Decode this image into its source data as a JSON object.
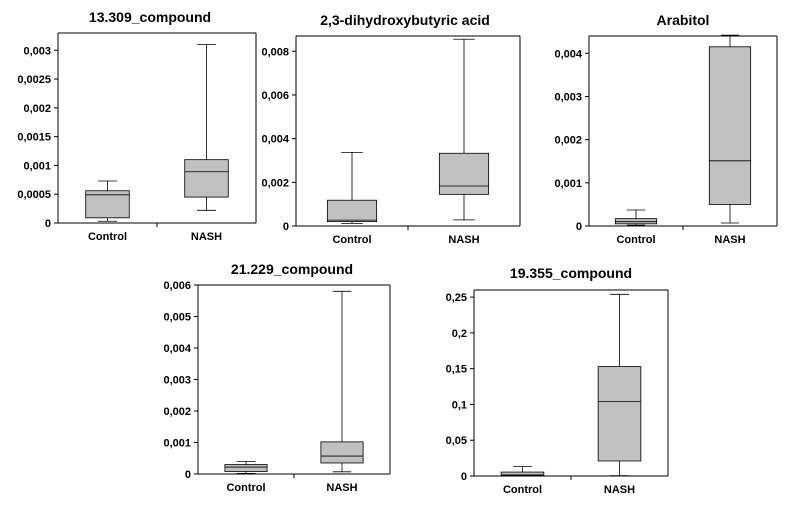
{
  "chart_data": [
    {
      "type": "box",
      "title": "13.309_compound",
      "categories": [
        "Control",
        "NASH"
      ],
      "yticks": [
        "0",
        "0,0005",
        "0,001",
        "0,0015",
        "0,002",
        "0,0025",
        "0,003"
      ],
      "ylim": [
        0,
        0.0033
      ],
      "boxes": [
        {
          "min": 3e-05,
          "q1": 9e-05,
          "median": 0.00049,
          "q3": 0.00056,
          "max": 0.00073
        },
        {
          "min": 0.00022,
          "q1": 0.00045,
          "median": 0.00089,
          "q3": 0.0011,
          "max": 0.0031
        }
      ],
      "box_color": "#c0c0c0"
    },
    {
      "type": "box",
      "title": "2,3-dihydroxybutyric  acid",
      "categories": [
        "Control",
        "NASH"
      ],
      "yticks": [
        "0",
        "0,002",
        "0,004",
        "0,006",
        "0,008"
      ],
      "ylim": [
        0,
        0.0087
      ],
      "boxes": [
        {
          "min": 0.00012,
          "q1": 0.0002,
          "median": 0.00027,
          "q3": 0.00118,
          "max": 0.00337
        },
        {
          "min": 0.00028,
          "q1": 0.00145,
          "median": 0.00183,
          "q3": 0.00333,
          "max": 0.00855
        }
      ],
      "box_color": "#c0c0c0"
    },
    {
      "type": "box",
      "title": "Arabitol",
      "categories": [
        "Control",
        "NASH"
      ],
      "yticks": [
        "0",
        "0,001",
        "0,002",
        "0,003",
        "0,004"
      ],
      "ylim": [
        0,
        0.0044
      ],
      "boxes": [
        {
          "min": 2e-05,
          "q1": 5e-05,
          "median": 0.0001,
          "q3": 0.00017,
          "max": 0.00037
        },
        {
          "min": 7e-05,
          "q1": 0.0005,
          "median": 0.00151,
          "q3": 0.00415,
          "max": 0.00442
        }
      ],
      "box_color": "#c0c0c0"
    },
    {
      "type": "box",
      "title": "21.229_compound",
      "categories": [
        "Control",
        "NASH"
      ],
      "yticks": [
        "0",
        "0,001",
        "0,002",
        "0,003",
        "0,004",
        "0,005",
        "0,006"
      ],
      "ylim": [
        0,
        0.006
      ],
      "boxes": [
        {
          "min": 2e-05,
          "q1": 8e-05,
          "median": 0.00022,
          "q3": 0.0003,
          "max": 0.0004
        },
        {
          "min": 7e-05,
          "q1": 0.00035,
          "median": 0.00057,
          "q3": 0.00102,
          "max": 0.0058
        }
      ],
      "box_color": "#c0c0c0"
    },
    {
      "type": "box",
      "title": "19.355_compound",
      "categories": [
        "Control",
        "NASH"
      ],
      "yticks": [
        "0",
        "0,05",
        "0,1",
        "0,15",
        "0,2",
        "0,25"
      ],
      "ylim": [
        0,
        0.26
      ],
      "boxes": [
        {
          "min": 0.0,
          "q1": 0.0008,
          "median": 0.0015,
          "q3": 0.0055,
          "max": 0.0135
        },
        {
          "min": 0.0005,
          "q1": 0.021,
          "median": 0.104,
          "q3": 0.153,
          "max": 0.254
        }
      ],
      "box_color": "#c0c0c0"
    }
  ]
}
